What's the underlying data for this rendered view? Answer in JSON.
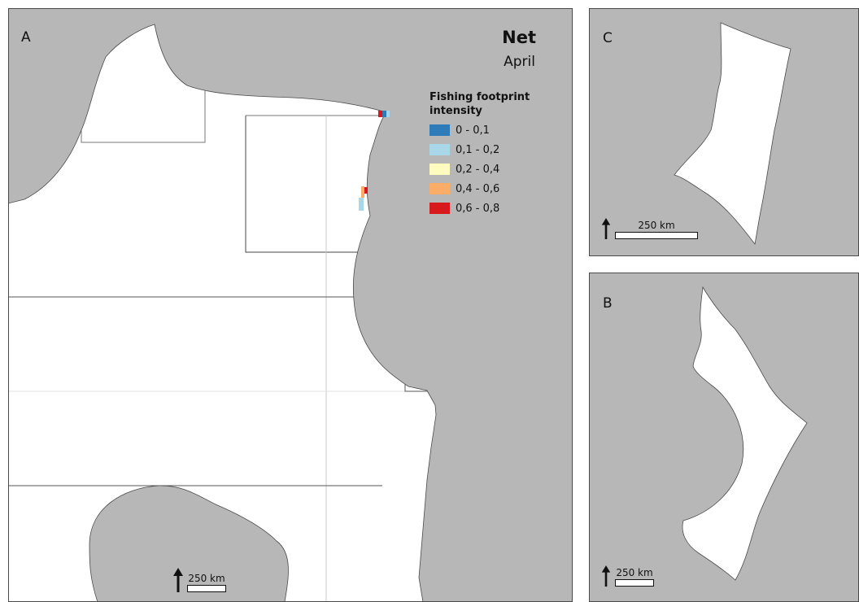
{
  "colors": {
    "land": "#b7b7b7",
    "sea": "#ffffff",
    "border": "#4a4a4a",
    "grid_line": "#555555",
    "faint_grid": "#d6d6d6"
  },
  "panels": {
    "a": {
      "letter": "A",
      "title": "Net",
      "subtitle": "April",
      "legend": {
        "title": "Fishing footprint\nintensity",
        "items": [
          {
            "label": "0 - 0,1",
            "color": "#2d7bb8"
          },
          {
            "label": "0,1 - 0,2",
            "color": "#a9d7ea"
          },
          {
            "label": "0,2 - 0,4",
            "color": "#fdfbbe"
          },
          {
            "label": "0,4 - 0,6",
            "color": "#fbad67"
          },
          {
            "label": "0,6 - 0,8",
            "color": "#d7191c"
          }
        ]
      },
      "scale_label": "250 km"
    },
    "c": {
      "letter": "C",
      "scale_label": "250 km"
    },
    "b": {
      "letter": "B",
      "scale_label": "250 km"
    }
  },
  "icons": {
    "north_arrow": "north-arrow-icon"
  }
}
